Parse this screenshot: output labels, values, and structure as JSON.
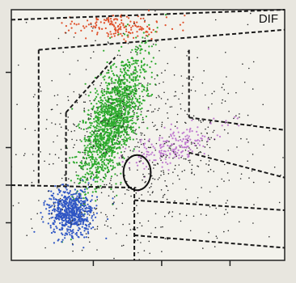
{
  "chart_data": {
    "type": "scatter",
    "title": "DIF",
    "xlabel": "",
    "ylabel": "",
    "xlim": [
      0,
      100
    ],
    "ylim": [
      0,
      100
    ],
    "x_ticks": [
      30,
      55,
      80
    ],
    "y_ticks": [
      15,
      30,
      45,
      75
    ],
    "grid": false,
    "legend": "none",
    "series": [
      {
        "color": "#e0502a",
        "cluster": {
          "cx": 40,
          "cy": 93,
          "sx": 9,
          "sy": 2.5,
          "n": 170,
          "rot": 0
        }
      },
      {
        "color": "#2eaa2e",
        "cluster": {
          "cx": 37,
          "cy": 56,
          "sx": 4.2,
          "sy": 13.5,
          "n": 1600,
          "rot": -18
        }
      },
      {
        "color": "#2f56c4",
        "cluster": {
          "cx": 22,
          "cy": 19,
          "sx": 4,
          "sy": 4.5,
          "n": 650,
          "rot": 0
        }
      },
      {
        "color": "#c07ad0",
        "cluster": {
          "cx": 60,
          "cy": 46,
          "sx": 9,
          "sy": 3.5,
          "n": 200,
          "rot": 28
        }
      },
      {
        "color": "#2a2a2a",
        "cluster": {
          "cx": 45,
          "cy": 45,
          "sx": 22,
          "sy": 22,
          "n": 750,
          "rot": 0
        }
      }
    ],
    "gates": [
      {
        "points": [
          [
            0,
            96
          ],
          [
            100,
            100
          ]
        ]
      },
      {
        "points": [
          [
            10,
            84
          ],
          [
            100,
            92
          ]
        ]
      },
      {
        "points": [
          [
            20,
            59
          ],
          [
            38,
            81
          ]
        ]
      },
      {
        "points": [
          [
            65,
            57
          ],
          [
            100,
            52
          ]
        ]
      },
      {
        "points": [
          [
            65,
            43
          ],
          [
            100,
            33
          ]
        ]
      },
      {
        "points": [
          [
            0,
            30
          ],
          [
            45,
            29
          ],
          [
            45,
            0
          ]
        ]
      },
      {
        "points": [
          [
            45,
            24
          ],
          [
            100,
            20
          ]
        ]
      },
      {
        "points": [
          [
            45,
            10
          ],
          [
            100,
            5
          ]
        ]
      },
      {
        "points": [
          [
            10,
            84
          ],
          [
            10,
            30
          ]
        ]
      },
      {
        "points": [
          [
            20,
            59
          ],
          [
            20,
            30
          ]
        ]
      },
      {
        "points": [
          [
            65,
            84
          ],
          [
            65,
            57
          ]
        ]
      }
    ],
    "annotations": [
      {
        "type": "ellipse",
        "cx": 46,
        "cy": 35,
        "rx": 5,
        "ry": 7
      }
    ]
  }
}
